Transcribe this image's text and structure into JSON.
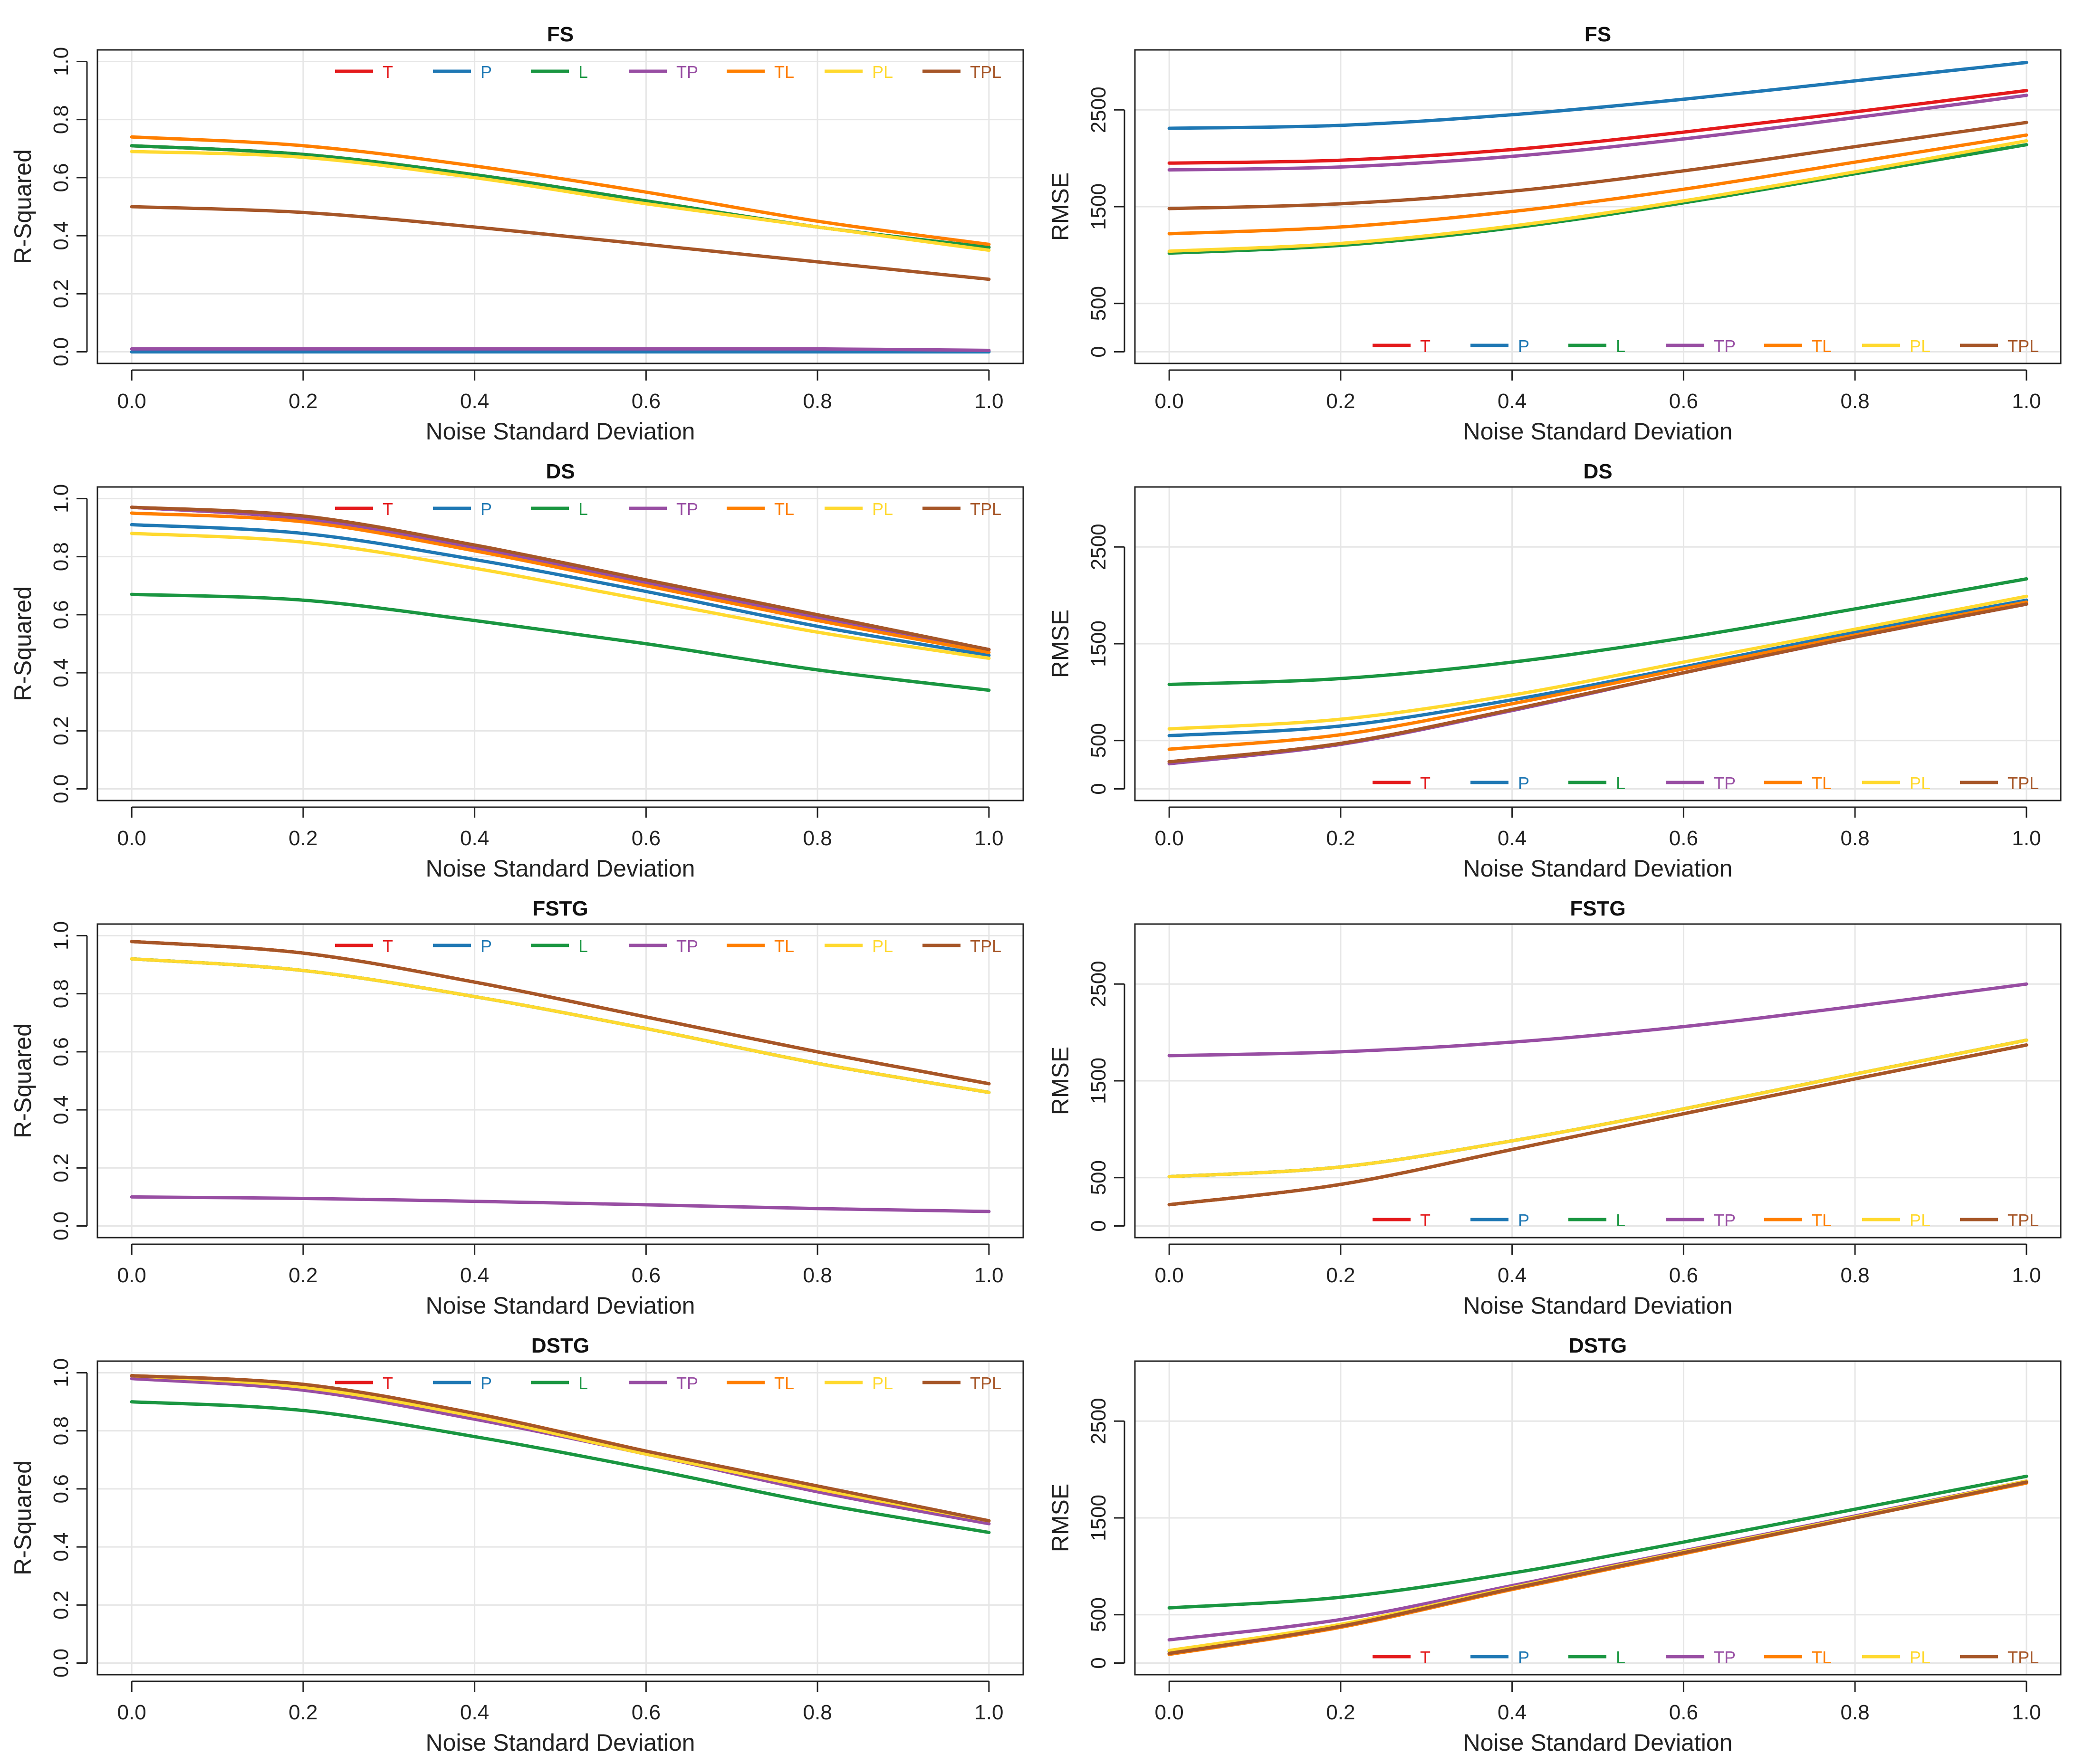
{
  "figure": {
    "columns": 2,
    "rows": 4
  },
  "series_colors": {
    "T": "#e41a1c",
    "P": "#1f78b4",
    "L": "#1a9641",
    "TP": "#984ea3",
    "TL": "#ff7f00",
    "PL": "#ffd92f",
    "TPL": "#a65628"
  },
  "chart_data": [
    {
      "type": "line",
      "title": "FS",
      "xlabel": "Noise Standard Deviation",
      "ylabel": "R-Squared",
      "xlim": [
        0,
        1
      ],
      "ylim": [
        0,
        1
      ],
      "xticks": [
        "0.0",
        "0.2",
        "0.4",
        "0.6",
        "0.8",
        "1.0"
      ],
      "yticks": [
        "0.0",
        "0.2",
        "0.4",
        "0.6",
        "0.8",
        "1.0"
      ],
      "ytick_values": [
        0,
        0.2,
        0.4,
        0.6,
        0.8,
        1.0
      ],
      "legend": "top-right",
      "grid": true,
      "x": [
        0.0,
        0.2,
        0.4,
        0.6,
        0.8,
        1.0
      ],
      "series": [
        {
          "name": "T",
          "values": [
            0.71,
            0.68,
            0.61,
            0.52,
            0.43,
            0.36
          ]
        },
        {
          "name": "P",
          "values": [
            0.0,
            0.0,
            0.0,
            0.0,
            0.0,
            0.0
          ]
        },
        {
          "name": "L",
          "values": [
            0.71,
            0.68,
            0.61,
            0.52,
            0.43,
            0.36
          ]
        },
        {
          "name": "TP",
          "values": [
            0.01,
            0.01,
            0.01,
            0.01,
            0.01,
            0.005
          ]
        },
        {
          "name": "TL",
          "values": [
            0.74,
            0.71,
            0.64,
            0.55,
            0.45,
            0.37
          ]
        },
        {
          "name": "PL",
          "values": [
            0.69,
            0.67,
            0.6,
            0.51,
            0.43,
            0.35
          ]
        },
        {
          "name": "TPL",
          "values": [
            0.5,
            0.48,
            0.43,
            0.37,
            0.31,
            0.25
          ]
        }
      ]
    },
    {
      "type": "line",
      "title": "FS",
      "xlabel": "Noise Standard Deviation",
      "ylabel": "RMSE",
      "xlim": [
        0,
        1
      ],
      "ylim": [
        0,
        3000
      ],
      "xticks": [
        "0.0",
        "0.2",
        "0.4",
        "0.6",
        "0.8",
        "1.0"
      ],
      "yticks": [
        "0",
        "500",
        "1500",
        "2500"
      ],
      "ytick_values": [
        0,
        500,
        1500,
        2500
      ],
      "legend": "bottom-right",
      "grid": true,
      "x": [
        0.0,
        0.2,
        0.4,
        0.6,
        0.8,
        1.0
      ],
      "series": [
        {
          "name": "T",
          "values": [
            1950,
            1980,
            2090,
            2270,
            2480,
            2700
          ]
        },
        {
          "name": "P",
          "values": [
            2310,
            2340,
            2450,
            2610,
            2800,
            2990
          ]
        },
        {
          "name": "L",
          "values": [
            1020,
            1100,
            1280,
            1540,
            1840,
            2140
          ]
        },
        {
          "name": "TP",
          "values": [
            1880,
            1910,
            2020,
            2200,
            2420,
            2650
          ]
        },
        {
          "name": "TL",
          "values": [
            1220,
            1290,
            1450,
            1680,
            1960,
            2240
          ]
        },
        {
          "name": "PL",
          "values": [
            1040,
            1120,
            1300,
            1560,
            1860,
            2180
          ]
        },
        {
          "name": "TPL",
          "values": [
            1480,
            1530,
            1660,
            1870,
            2120,
            2370
          ]
        }
      ]
    },
    {
      "type": "line",
      "title": "DS",
      "xlabel": "Noise Standard Deviation",
      "ylabel": "R-Squared",
      "xlim": [
        0,
        1
      ],
      "ylim": [
        0,
        1
      ],
      "xticks": [
        "0.0",
        "0.2",
        "0.4",
        "0.6",
        "0.8",
        "1.0"
      ],
      "yticks": [
        "0.0",
        "0.2",
        "0.4",
        "0.6",
        "0.8",
        "1.0"
      ],
      "ytick_values": [
        0,
        0.2,
        0.4,
        0.6,
        0.8,
        1.0
      ],
      "legend": "top-right",
      "grid": true,
      "x": [
        0.0,
        0.2,
        0.4,
        0.6,
        0.8,
        1.0
      ],
      "series": [
        {
          "name": "T",
          "values": [
            0.97,
            0.93,
            0.83,
            0.71,
            0.59,
            0.48
          ]
        },
        {
          "name": "P",
          "values": [
            0.91,
            0.88,
            0.79,
            0.68,
            0.56,
            0.46
          ]
        },
        {
          "name": "L",
          "values": [
            0.67,
            0.65,
            0.58,
            0.5,
            0.41,
            0.34
          ]
        },
        {
          "name": "TP",
          "values": [
            0.97,
            0.93,
            0.83,
            0.71,
            0.59,
            0.48
          ]
        },
        {
          "name": "TL",
          "values": [
            0.95,
            0.92,
            0.82,
            0.7,
            0.58,
            0.47
          ]
        },
        {
          "name": "PL",
          "values": [
            0.88,
            0.85,
            0.76,
            0.65,
            0.54,
            0.45
          ]
        },
        {
          "name": "TPL",
          "values": [
            0.97,
            0.94,
            0.84,
            0.72,
            0.6,
            0.48
          ]
        }
      ]
    },
    {
      "type": "line",
      "title": "DS",
      "xlabel": "Noise Standard Deviation",
      "ylabel": "RMSE",
      "xlim": [
        0,
        1
      ],
      "ylim": [
        0,
        3000
      ],
      "xticks": [
        "0.0",
        "0.2",
        "0.4",
        "0.6",
        "0.8",
        "1.0"
      ],
      "yticks": [
        "0",
        "500",
        "1500",
        "2500"
      ],
      "ytick_values": [
        0,
        500,
        1500,
        2500
      ],
      "legend": "bottom-right",
      "grid": true,
      "x": [
        0.0,
        0.2,
        0.4,
        0.6,
        0.8,
        1.0
      ],
      "series": [
        {
          "name": "T",
          "values": [
            280,
            470,
            820,
            1200,
            1570,
            1910
          ]
        },
        {
          "name": "P",
          "values": [
            550,
            650,
            920,
            1260,
            1620,
            1950
          ]
        },
        {
          "name": "L",
          "values": [
            1080,
            1140,
            1310,
            1560,
            1860,
            2170
          ]
        },
        {
          "name": "TP",
          "values": [
            260,
            460,
            810,
            1200,
            1570,
            1910
          ]
        },
        {
          "name": "TL",
          "values": [
            410,
            560,
            880,
            1240,
            1590,
            1930
          ]
        },
        {
          "name": "PL",
          "values": [
            620,
            720,
            970,
            1310,
            1650,
            1990
          ]
        },
        {
          "name": "TPL",
          "values": [
            280,
            470,
            820,
            1200,
            1570,
            1910
          ]
        }
      ]
    },
    {
      "type": "line",
      "title": "FSTG",
      "xlabel": "Noise Standard Deviation",
      "ylabel": "R-Squared",
      "xlim": [
        0,
        1
      ],
      "ylim": [
        0,
        1
      ],
      "xticks": [
        "0.0",
        "0.2",
        "0.4",
        "0.6",
        "0.8",
        "1.0"
      ],
      "yticks": [
        "0.0",
        "0.2",
        "0.4",
        "0.6",
        "0.8",
        "1.0"
      ],
      "ytick_values": [
        0,
        0.2,
        0.4,
        0.6,
        0.8,
        1.0
      ],
      "legend": "top-right",
      "grid": true,
      "x": [
        0.0,
        0.2,
        0.4,
        0.6,
        0.8,
        1.0
      ],
      "series": [
        {
          "name": "T",
          "values": [
            0.98,
            0.94,
            0.84,
            0.72,
            0.6,
            0.49
          ]
        },
        {
          "name": "P",
          "values": [
            0.92,
            0.88,
            0.79,
            0.68,
            0.56,
            0.46
          ]
        },
        {
          "name": "L",
          "values": [
            0.92,
            0.88,
            0.79,
            0.68,
            0.56,
            0.46
          ]
        },
        {
          "name": "TP",
          "values": [
            0.1,
            0.095,
            0.085,
            0.073,
            0.06,
            0.05
          ]
        },
        {
          "name": "TL",
          "values": [
            0.98,
            0.94,
            0.84,
            0.72,
            0.6,
            0.49
          ]
        },
        {
          "name": "PL",
          "values": [
            0.92,
            0.88,
            0.79,
            0.68,
            0.56,
            0.46
          ]
        },
        {
          "name": "TPL",
          "values": [
            0.98,
            0.94,
            0.84,
            0.72,
            0.6,
            0.49
          ]
        }
      ]
    },
    {
      "type": "line",
      "title": "FSTG",
      "xlabel": "Noise Standard Deviation",
      "ylabel": "RMSE",
      "xlim": [
        0,
        1
      ],
      "ylim": [
        0,
        3000
      ],
      "xticks": [
        "0.0",
        "0.2",
        "0.4",
        "0.6",
        "0.8",
        "1.0"
      ],
      "yticks": [
        "0",
        "500",
        "1500",
        "2500"
      ],
      "ytick_values": [
        0,
        500,
        1500,
        2500
      ],
      "legend": "bottom-right",
      "grid": true,
      "x": [
        0.0,
        0.2,
        0.4,
        0.6,
        0.8,
        1.0
      ],
      "series": [
        {
          "name": "T",
          "values": [
            220,
            430,
            790,
            1160,
            1520,
            1870
          ]
        },
        {
          "name": "P",
          "values": [
            510,
            610,
            880,
            1210,
            1570,
            1920
          ]
        },
        {
          "name": "L",
          "values": [
            510,
            610,
            880,
            1210,
            1570,
            1920
          ]
        },
        {
          "name": "TP",
          "values": [
            1760,
            1800,
            1900,
            2060,
            2270,
            2500
          ]
        },
        {
          "name": "TL",
          "values": [
            220,
            430,
            790,
            1160,
            1520,
            1870
          ]
        },
        {
          "name": "PL",
          "values": [
            510,
            610,
            880,
            1210,
            1570,
            1920
          ]
        },
        {
          "name": "TPL",
          "values": [
            220,
            430,
            790,
            1160,
            1520,
            1870
          ]
        }
      ]
    },
    {
      "type": "line",
      "title": "DSTG",
      "xlabel": "Noise Standard Deviation",
      "ylabel": "R-Squared",
      "xlim": [
        0,
        1
      ],
      "ylim": [
        0,
        1
      ],
      "xticks": [
        "0.0",
        "0.2",
        "0.4",
        "0.6",
        "0.8",
        "1.0"
      ],
      "yticks": [
        "0.0",
        "0.2",
        "0.4",
        "0.6",
        "0.8",
        "1.0"
      ],
      "ytick_values": [
        0,
        0.2,
        0.4,
        0.6,
        0.8,
        1.0
      ],
      "legend": "top-right",
      "grid": true,
      "x": [
        0.0,
        0.2,
        0.4,
        0.6,
        0.8,
        1.0
      ],
      "series": [
        {
          "name": "T",
          "values": [
            0.99,
            0.95,
            0.85,
            0.72,
            0.6,
            0.49
          ]
        },
        {
          "name": "P",
          "values": [
            0.99,
            0.95,
            0.85,
            0.72,
            0.6,
            0.49
          ]
        },
        {
          "name": "L",
          "values": [
            0.9,
            0.87,
            0.78,
            0.67,
            0.55,
            0.45
          ]
        },
        {
          "name": "TP",
          "values": [
            0.98,
            0.94,
            0.84,
            0.72,
            0.59,
            0.48
          ]
        },
        {
          "name": "TL",
          "values": [
            0.99,
            0.96,
            0.86,
            0.73,
            0.6,
            0.49
          ]
        },
        {
          "name": "PL",
          "values": [
            0.99,
            0.95,
            0.85,
            0.72,
            0.6,
            0.49
          ]
        },
        {
          "name": "TPL",
          "values": [
            0.99,
            0.96,
            0.86,
            0.73,
            0.61,
            0.49
          ]
        }
      ]
    },
    {
      "type": "line",
      "title": "DSTG",
      "xlabel": "Noise Standard Deviation",
      "ylabel": "RMSE",
      "xlim": [
        0,
        1
      ],
      "ylim": [
        0,
        3000
      ],
      "xticks": [
        "0.0",
        "0.2",
        "0.4",
        "0.6",
        "0.8",
        "1.0"
      ],
      "yticks": [
        "0",
        "500",
        "1500",
        "2500"
      ],
      "ytick_values": [
        0,
        500,
        1500,
        2500
      ],
      "legend": "bottom-right",
      "grid": true,
      "x": [
        0.0,
        0.2,
        0.4,
        0.6,
        0.8,
        1.0
      ],
      "series": [
        {
          "name": "T",
          "values": [
            100,
            380,
            770,
            1140,
            1500,
            1870
          ]
        },
        {
          "name": "P",
          "values": [
            120,
            390,
            780,
            1150,
            1510,
            1880
          ]
        },
        {
          "name": "L",
          "values": [
            570,
            680,
            930,
            1250,
            1590,
            1930
          ]
        },
        {
          "name": "TP",
          "values": [
            240,
            450,
            800,
            1160,
            1520,
            1880
          ]
        },
        {
          "name": "TL",
          "values": [
            90,
            370,
            760,
            1130,
            1500,
            1860
          ]
        },
        {
          "name": "PL",
          "values": [
            130,
            400,
            780,
            1150,
            1510,
            1880
          ]
        },
        {
          "name": "TPL",
          "values": [
            100,
            380,
            770,
            1140,
            1500,
            1870
          ]
        }
      ]
    }
  ]
}
